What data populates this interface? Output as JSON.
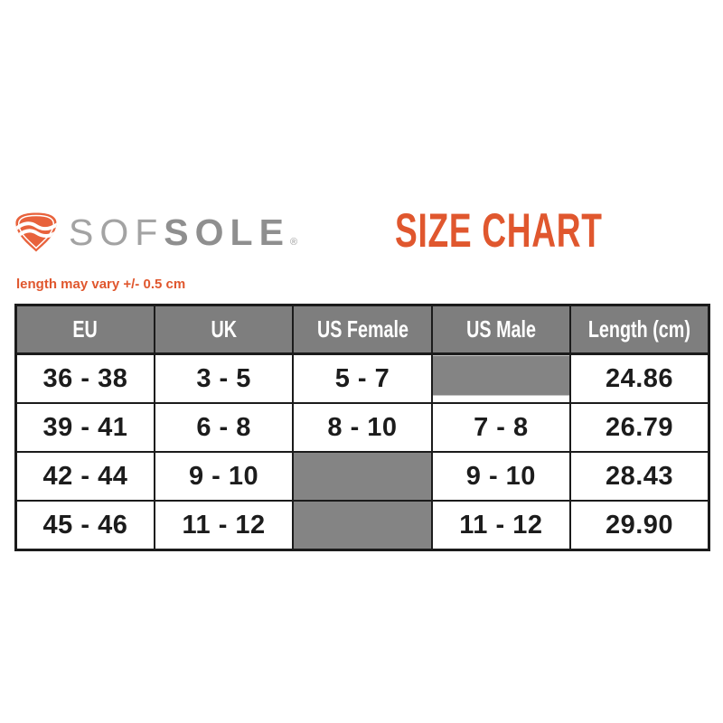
{
  "brand": {
    "name_part1": "SOF",
    "name_part2": "SOLE",
    "registered": "®",
    "logo_icon": "sofsole-shield-wave-icon"
  },
  "title": "SIZE CHART",
  "note": "length may vary +/- 0.5 cm",
  "colors": {
    "accent_orange": "#e0572e",
    "logo_orange": "#e8623c",
    "header_gray": "#7e7e7e",
    "blocked_cell_gray": "#848484",
    "logo_text_gray": "#9c9c9c",
    "border_black": "#1b1b1b"
  },
  "chart_data": {
    "type": "table",
    "title": "SIZE CHART",
    "columns": [
      "EU",
      "UK",
      "US Female",
      "US Male",
      "Length (cm)"
    ],
    "rows": [
      [
        "36 - 38",
        "3 - 5",
        "5 - 7",
        "",
        "24.86"
      ],
      [
        "39 - 41",
        "6 - 8",
        "8 - 10",
        "7 - 8",
        "26.79"
      ],
      [
        "42 - 44",
        "9 - 10",
        "",
        "9 - 10",
        "28.43"
      ],
      [
        "45 - 46",
        "11 - 12",
        "",
        "11 - 12",
        "29.90"
      ]
    ],
    "cell_styles": [
      [
        "black",
        "orange",
        "black",
        "gray-partial",
        "black"
      ],
      [
        "black",
        "orange",
        "black",
        "orange",
        "black"
      ],
      [
        "black",
        "orange",
        "gray",
        "orange",
        "black"
      ],
      [
        "black",
        "orange",
        "gray",
        "orange",
        "black"
      ]
    ],
    "legend_position": "none",
    "grid": true
  }
}
